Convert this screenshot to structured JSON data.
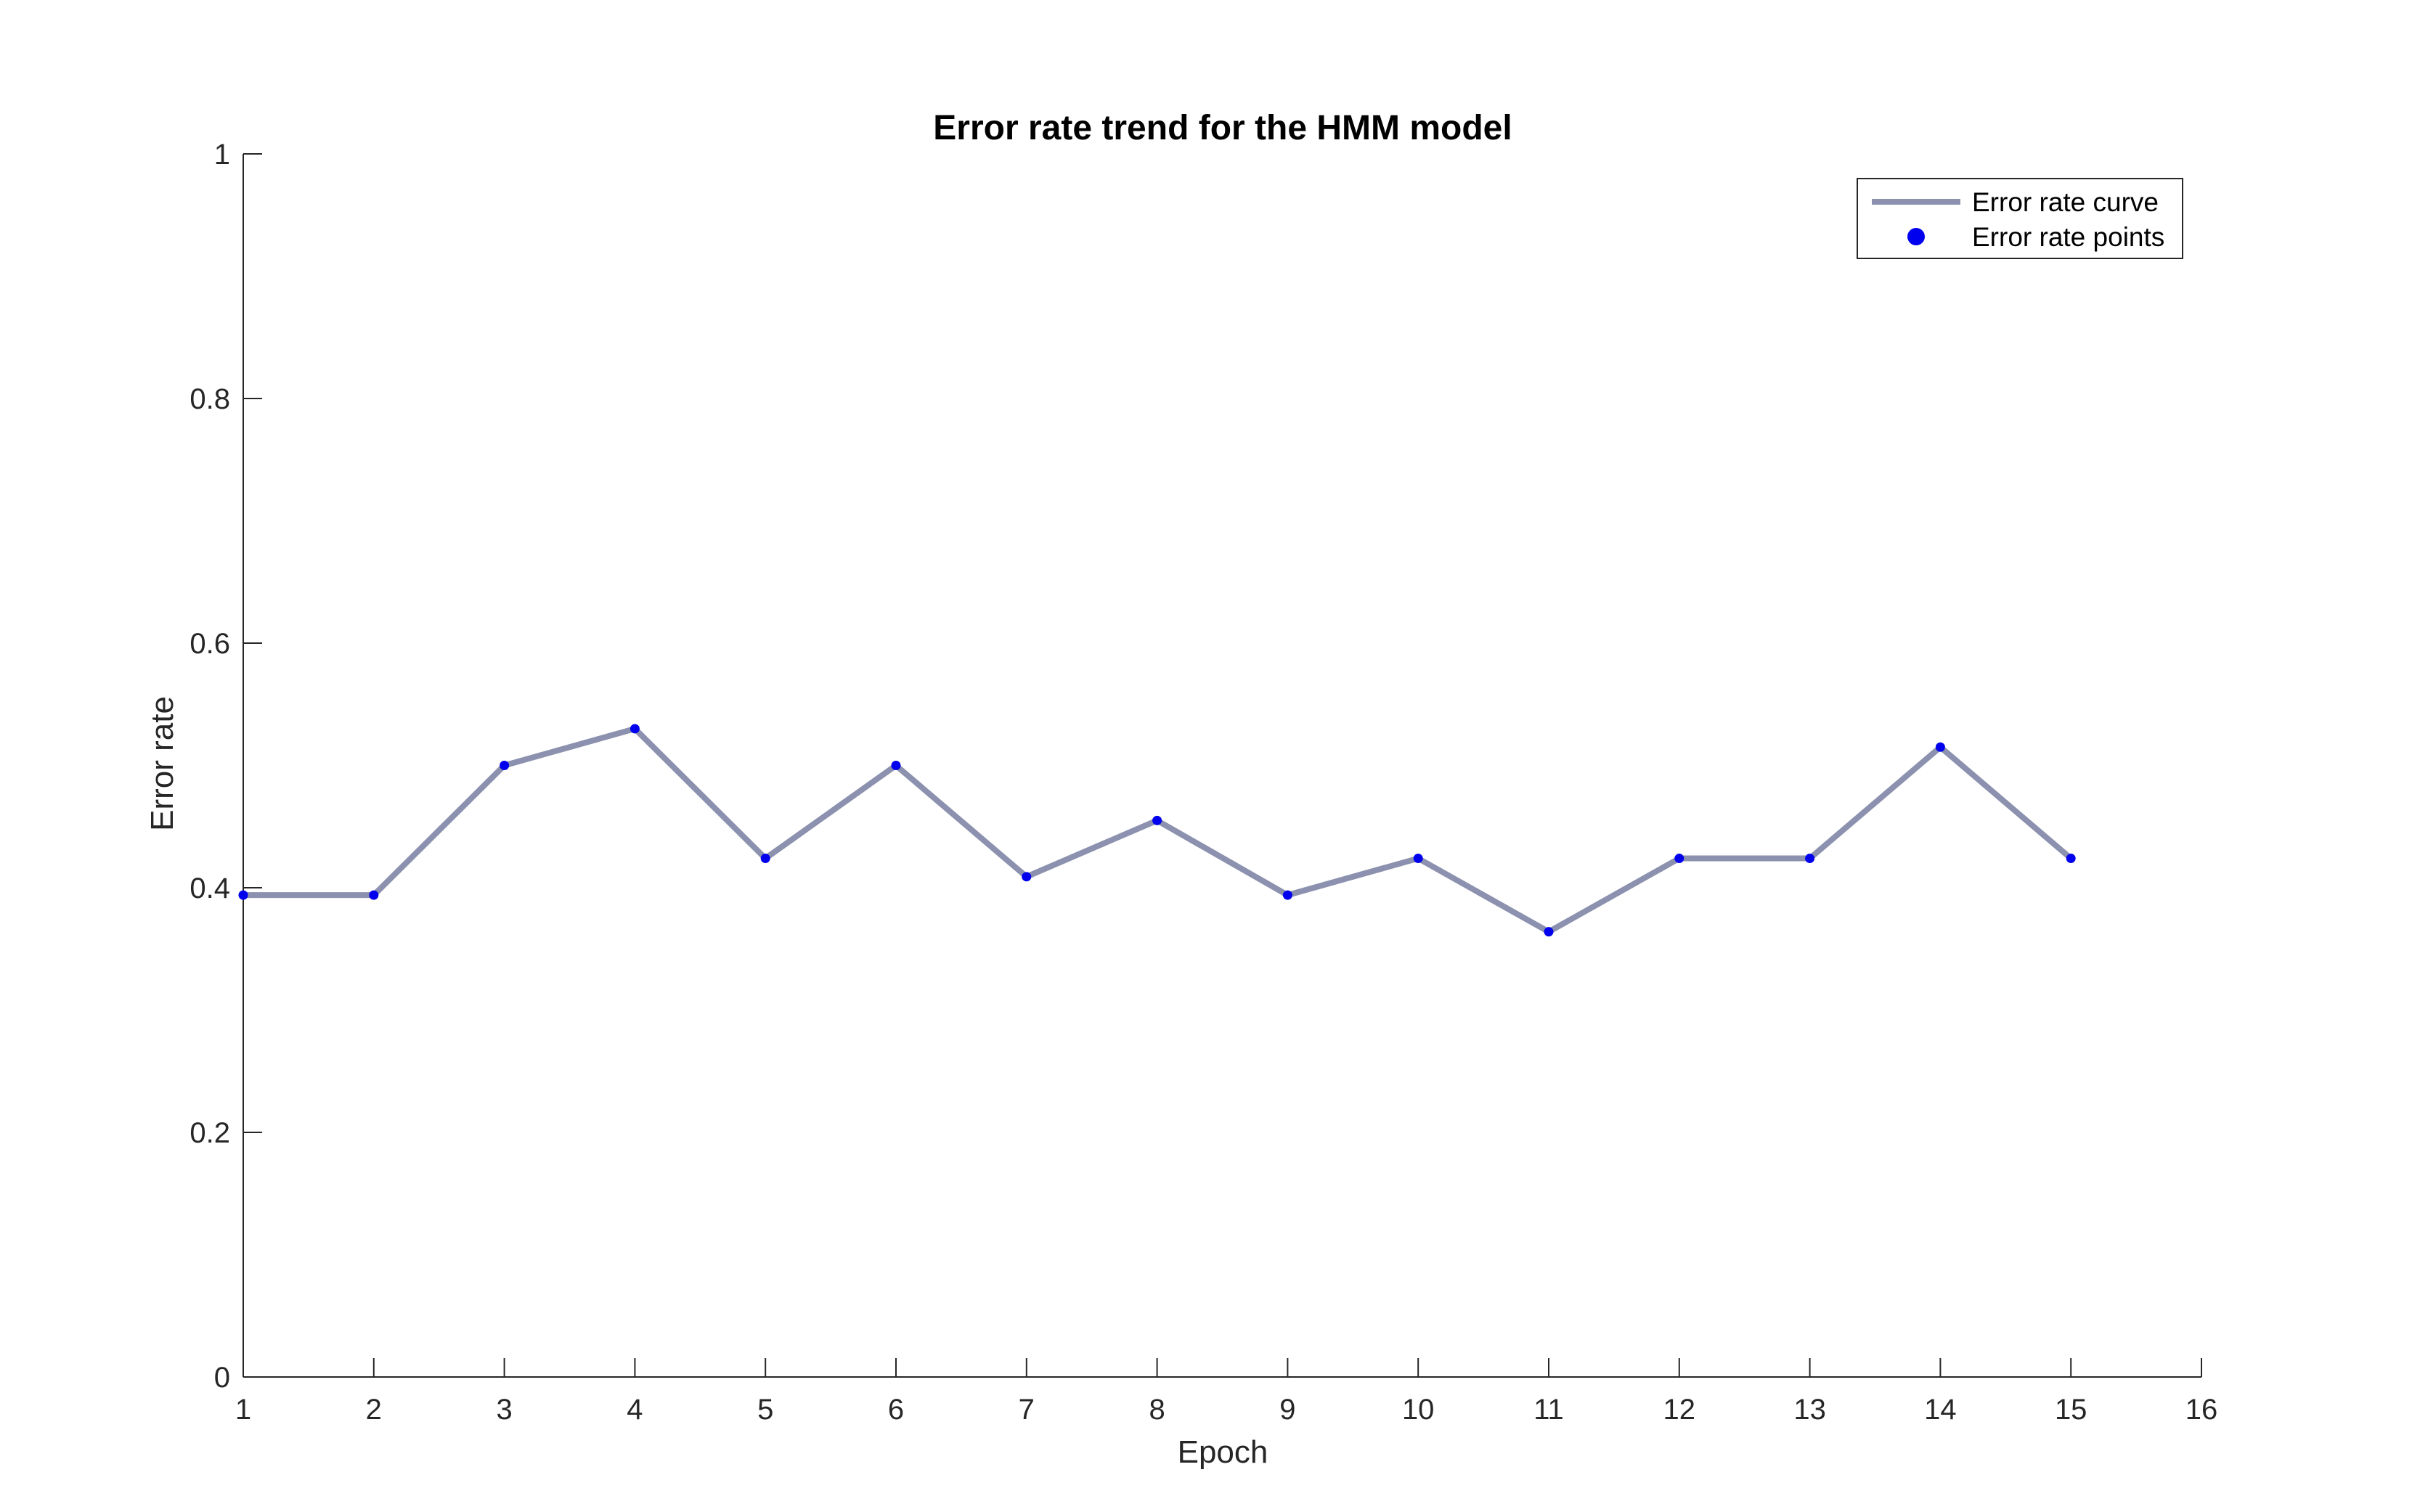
{
  "chart_data": {
    "type": "line",
    "title": "Error rate trend for the HMM model",
    "xlabel": "Epoch",
    "ylabel": "Error rate",
    "xlim": [
      1,
      16
    ],
    "ylim": [
      0,
      1
    ],
    "xticks": [
      1,
      2,
      3,
      4,
      5,
      6,
      7,
      8,
      9,
      10,
      11,
      12,
      13,
      14,
      15,
      16
    ],
    "xtick_labels": [
      "1",
      "2",
      "3",
      "4",
      "5",
      "6",
      "7",
      "8",
      "9",
      "10",
      "11",
      "12",
      "13",
      "14",
      "15",
      "16"
    ],
    "yticks": [
      0,
      0.2,
      0.4,
      0.6,
      0.8,
      1
    ],
    "ytick_labels": [
      "0",
      "0.2",
      "0.4",
      "0.6",
      "0.8",
      "1"
    ],
    "grid": false,
    "legend_placement": "top-right",
    "x": [
      1,
      2,
      3,
      4,
      5,
      6,
      7,
      8,
      9,
      10,
      11,
      12,
      13,
      14,
      15
    ],
    "series": [
      {
        "name": "Error rate curve",
        "style": "line",
        "color": "#8B91AE",
        "values": [
          0.394,
          0.394,
          0.5,
          0.53,
          0.424,
          0.5,
          0.409,
          0.455,
          0.394,
          0.424,
          0.364,
          0.424,
          0.424,
          0.515,
          0.424
        ]
      },
      {
        "name": "Error rate points",
        "style": "markers",
        "color": "#0000EE",
        "values": [
          0.394,
          0.394,
          0.5,
          0.53,
          0.424,
          0.5,
          0.409,
          0.455,
          0.394,
          0.424,
          0.364,
          0.424,
          0.424,
          0.515,
          0.424
        ]
      }
    ]
  }
}
